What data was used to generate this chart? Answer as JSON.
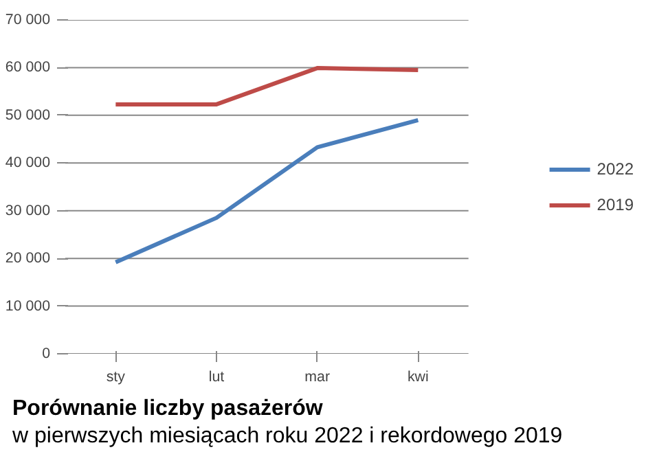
{
  "chart_data": {
    "type": "line",
    "title": "Porównanie liczby pasażerów",
    "subtitle": "w pierwszych miesiącach roku 2022 i rekordowego 2019",
    "categories": [
      "sty",
      "lut",
      "mar",
      "kwi"
    ],
    "series": [
      {
        "name": "2022",
        "color": "#4a7ebb",
        "values": [
          19200,
          28500,
          43300,
          49000
        ]
      },
      {
        "name": "2019",
        "color": "#be4b48",
        "values": [
          52300,
          52300,
          59900,
          59500
        ]
      }
    ],
    "ylim": [
      0,
      70000
    ],
    "yticks": [
      {
        "value": 0,
        "label": "0"
      },
      {
        "value": 10000,
        "label": "10 000"
      },
      {
        "value": 20000,
        "label": "20 000"
      },
      {
        "value": 30000,
        "label": "30 000"
      },
      {
        "value": 40000,
        "label": "40 000"
      },
      {
        "value": 50000,
        "label": "50 000"
      },
      {
        "value": 60000,
        "label": "60 000"
      },
      {
        "value": 70000,
        "label": "70 000"
      }
    ],
    "grid": "y",
    "legend": "right",
    "marker": "none",
    "line_style": "solid"
  }
}
